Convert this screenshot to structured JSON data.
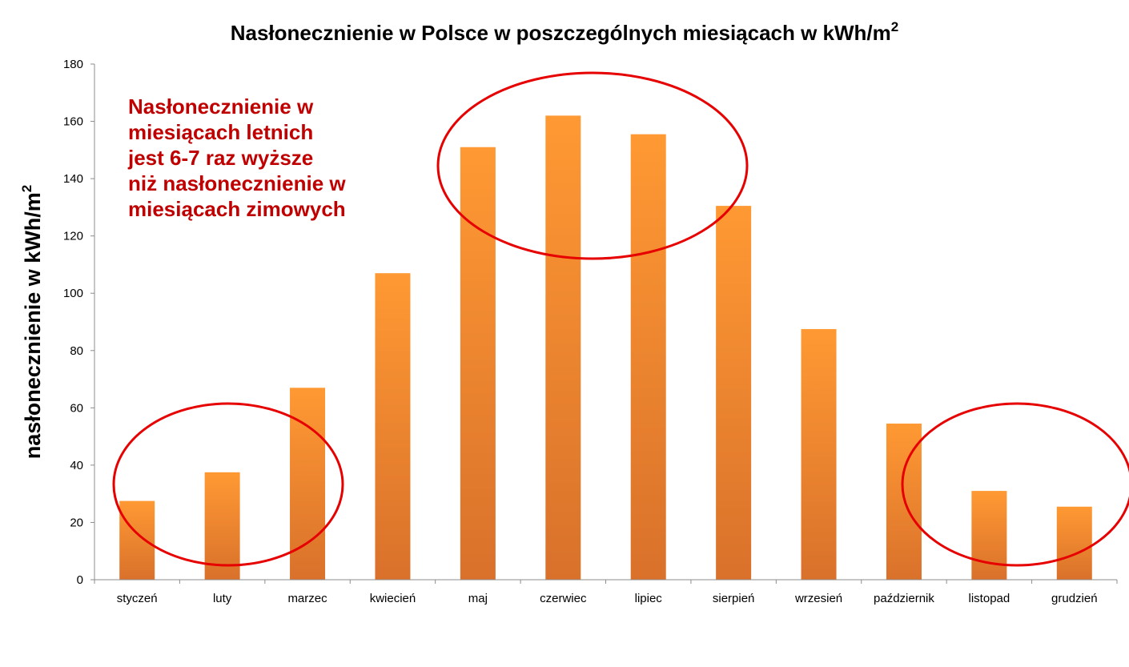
{
  "chart_data": {
    "type": "bar",
    "title": "Nasłonecznienie w Polsce w poszczególnych miesiącach w kWh/m",
    "title_sup": "2",
    "ylabel": "nasłonecznienie w kWh/m",
    "ylabel_sup": "2",
    "xlabel": "",
    "categories": [
      "styczeń",
      "luty",
      "marzec",
      "kwiecień",
      "maj",
      "czerwiec",
      "lipiec",
      "sierpień",
      "wrzesień",
      "październik",
      "listopad",
      "grudzień"
    ],
    "values": [
      27.5,
      37.5,
      67,
      107,
      151,
      162,
      155.5,
      130.5,
      87.5,
      54.5,
      31,
      25.5
    ],
    "ylim": [
      0,
      180
    ],
    "yticks": [
      0,
      20,
      40,
      60,
      80,
      100,
      120,
      140,
      160,
      180
    ],
    "grid": false,
    "legend": "none",
    "bar_color_top": "#ff9933",
    "bar_color_bottom": "#d9712b",
    "highlight_color": "#e60000",
    "annotation": {
      "lines": [
        "Nasłonecznienie w",
        "miesiącach letnich",
        "jest 6-7 raz wyższe",
        "niż nasłonecznienie w",
        "miesiącach zimowych"
      ],
      "color": "#c00000"
    }
  }
}
